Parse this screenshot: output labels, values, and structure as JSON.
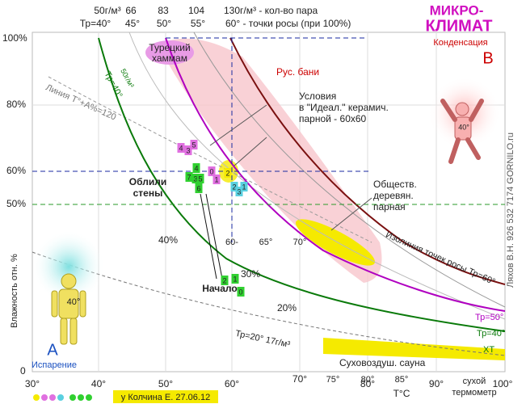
{
  "header": {
    "title_line1": "МИКРО-",
    "title_line2": "КЛИМАТ",
    "condensation": "Конденсация",
    "point_b": "В"
  },
  "top_labels": {
    "g50": "50г/м³",
    "tp40": "Тр=40°",
    "g66": "66",
    "t45": "45°",
    "g83": "83",
    "t50": "50°",
    "g104": "104",
    "t55": "55°",
    "g130": "130г/м³ - кол-во пара",
    "t60": "60° - точки росы (при 100%)"
  },
  "axes": {
    "y_label": "Влажность отн. %",
    "y_ticks": [
      "100%",
      "80%",
      "60%",
      "50%",
      "0"
    ],
    "x_ticks": [
      "30°",
      "40°",
      "50°",
      "60°",
      "70°",
      "80°",
      "90°",
      "100°"
    ],
    "x_ticks_small": [
      "60-",
      "65°",
      "70°",
      "75°",
      "80°",
      "85°"
    ],
    "x_unit": "T°C",
    "x_name_1": "сухой",
    "x_name_2": "термометр"
  },
  "zones": {
    "hammam_1": "Турецкий",
    "hammam_2": "хаммам",
    "rus_bani": "Рус. бани",
    "ideal_1": "Условия",
    "ideal_2": "в \"Идеал.\" керамич.",
    "ideal_3": "парной - 60x60",
    "wood_1": "Обществ.",
    "wood_2": "деревян.",
    "wood_3": "парная",
    "walls_1": "Облили",
    "walls_2": "стены",
    "start": "Начало",
    "dry_sauna": "Суховоздуш. сауна"
  },
  "humidity_labels": [
    "40%",
    "30%",
    "20%"
  ],
  "curve_labels": {
    "iso60": "Изолиния точек росы Тр=60°",
    "tp50": "Тр=50°",
    "tp40": "Тр=40°",
    "xt": "ХТ",
    "tp20": "Тр=20° 17г/м³",
    "line120": "Линия T°+A%=120",
    "tp40_left": "Тр=40°",
    "g50_left": "50г/м³"
  },
  "point_a": {
    "letter": "А",
    "label": "Испарение"
  },
  "figures": {
    "left_temp": "40°",
    "right_temp": "40°"
  },
  "markers": [
    "4",
    "3",
    "5",
    "0",
    "1",
    "2",
    "2",
    "3",
    "1",
    "4",
    "7",
    "3",
    "5",
    "6",
    "2",
    "1",
    "0"
  ],
  "credits": {
    "author": "у Колчина Е. 27.06.12",
    "side": "Ляхов В.Н. 926 532 7174   GORNILO.ru"
  }
}
